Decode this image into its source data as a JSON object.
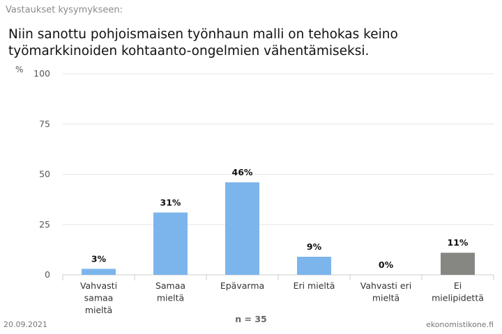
{
  "header": {
    "subtitle": "Vastaukset kysymykseen:",
    "title_line1": "Niin sanottu pohjoismaisen työnhaun malli on tehokas keino",
    "title_line2": "työmarkkinoiden kohtaanto-ongelmien vähentämiseksi."
  },
  "footer": {
    "date": "20.09.2021",
    "source": "ekonomistikone.fi"
  },
  "colors": {
    "bar_blue": "#7cb5ec",
    "bar_gray": "#868682",
    "grid": "#e6e6e6",
    "axis": "#cccccc"
  },
  "chart_data": {
    "type": "bar",
    "ylabel": "%",
    "ylim": [
      0,
      100
    ],
    "yticks": [
      0,
      25,
      50,
      75,
      100
    ],
    "grid": true,
    "categories": [
      [
        "Vahvasti",
        "samaa",
        "mieltä"
      ],
      [
        "Samaa",
        "mieltä"
      ],
      [
        "Epävarma"
      ],
      [
        "Eri mieltä"
      ],
      [
        "Vahvasti eri",
        "mieltä"
      ],
      [
        "Ei",
        "mielipidettä"
      ]
    ],
    "values": [
      3,
      31,
      46,
      9,
      0,
      11
    ],
    "value_labels": [
      "3%",
      "31%",
      "46%",
      "9%",
      "0%",
      "11%"
    ],
    "bar_colors": [
      "#7cb5ec",
      "#7cb5ec",
      "#7cb5ec",
      "#7cb5ec",
      "#7cb5ec",
      "#868682"
    ],
    "note": "n = 35"
  }
}
